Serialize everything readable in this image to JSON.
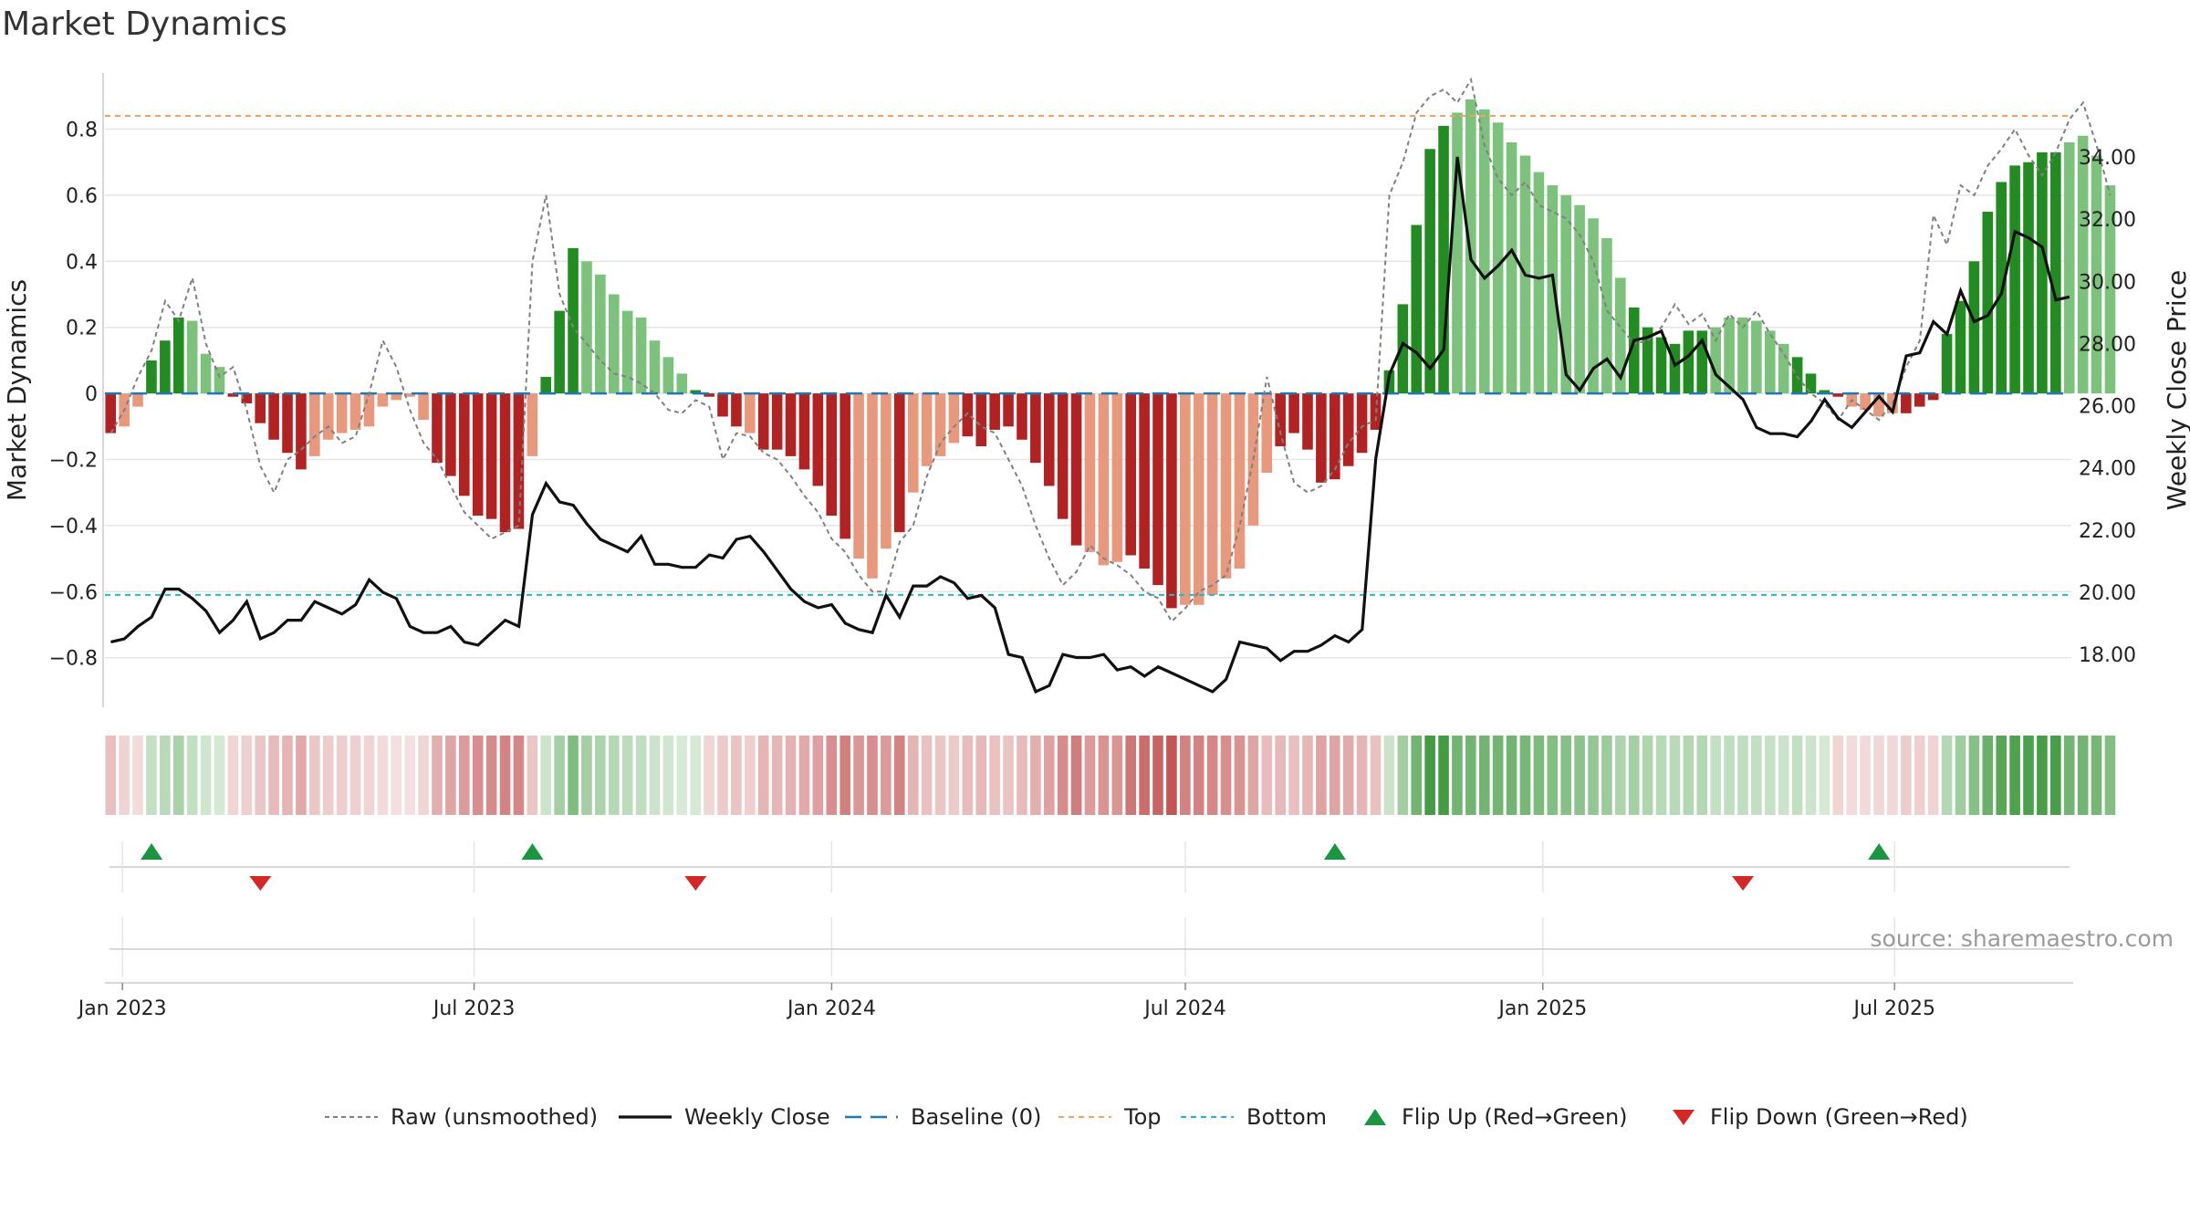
{
  "title": "Market Dynamics",
  "source": "source: sharemaestro.com",
  "chart_data": {
    "type": "bar",
    "title": "Market Dynamics",
    "ylabel_left": "Market Dynamics",
    "ylabel_right": "Weekly Close Price",
    "ylim_left": [
      -0.95,
      0.97
    ],
    "ylim_right": [
      16.3,
      36.7
    ],
    "yticks_left": [
      "0.8",
      "0.6",
      "0.4",
      "0.2",
      "0",
      "−0.2",
      "−0.4",
      "−0.6",
      "−0.8"
    ],
    "yticks_left_values": [
      0.8,
      0.6,
      0.4,
      0.2,
      0,
      -0.2,
      -0.4,
      -0.6,
      -0.8
    ],
    "yticks_right": [
      "34.00",
      "32.00",
      "30.00",
      "28.00",
      "26.00",
      "24.00",
      "22.00",
      "20.00",
      "18.00"
    ],
    "yticks_right_values": [
      34,
      32,
      30,
      28,
      26,
      24,
      22,
      20,
      18
    ],
    "top_level": 0.84,
    "bottom_level": -0.61,
    "baseline": 0,
    "x_start": "2022-12-23",
    "x_end": "2025-09-30",
    "xticks": [
      {
        "label": "Jan 2023",
        "date": "2023-01-01"
      },
      {
        "label": "Jul 2023",
        "date": "2023-07-01"
      },
      {
        "label": "Jan 2024",
        "date": "2024-01-01"
      },
      {
        "label": "Jul 2024",
        "date": "2024-07-01"
      },
      {
        "label": "Jan 2025",
        "date": "2025-01-01"
      },
      {
        "label": "Jul 2025",
        "date": "2025-07-01"
      }
    ],
    "week_start": "2022-12-26",
    "bar_values": [
      -0.12,
      -0.1,
      -0.04,
      0.1,
      0.16,
      0.23,
      0.22,
      0.12,
      0.08,
      -0.01,
      -0.03,
      -0.09,
      -0.14,
      -0.18,
      -0.23,
      -0.19,
      -0.14,
      -0.12,
      -0.11,
      -0.1,
      -0.04,
      -0.02,
      -0.01,
      -0.08,
      -0.21,
      -0.25,
      -0.31,
      -0.37,
      -0.38,
      -0.42,
      -0.41,
      -0.19,
      0.05,
      0.25,
      0.44,
      0.4,
      0.36,
      0.3,
      0.25,
      0.23,
      0.16,
      0.11,
      0.06,
      0.01,
      -0.01,
      -0.07,
      -0.1,
      -0.12,
      -0.17,
      -0.17,
      -0.19,
      -0.23,
      -0.28,
      -0.37,
      -0.44,
      -0.5,
      -0.56,
      -0.47,
      -0.42,
      -0.3,
      -0.22,
      -0.19,
      -0.15,
      -0.13,
      -0.16,
      -0.11,
      -0.1,
      -0.14,
      -0.21,
      -0.28,
      -0.38,
      -0.46,
      -0.48,
      -0.52,
      -0.51,
      -0.49,
      -0.53,
      -0.58,
      -0.65,
      -0.64,
      -0.64,
      -0.61,
      -0.56,
      -0.53,
      -0.4,
      -0.24,
      -0.16,
      -0.12,
      -0.17,
      -0.27,
      -0.26,
      -0.22,
      -0.18,
      -0.11,
      0.07,
      0.27,
      0.51,
      0.74,
      0.81,
      0.85,
      0.89,
      0.86,
      0.82,
      0.76,
      0.72,
      0.67,
      0.63,
      0.6,
      0.57,
      0.53,
      0.47,
      0.35,
      0.26,
      0.2,
      0.17,
      0.15,
      0.19,
      0.19,
      0.2,
      0.23,
      0.23,
      0.22,
      0.19,
      0.15,
      0.11,
      0.06,
      0.01,
      -0.01,
      -0.04,
      -0.05,
      -0.07,
      -0.06,
      -0.06,
      -0.04,
      -0.02,
      0.18,
      0.28,
      0.4,
      0.55,
      0.64,
      0.69,
      0.7,
      0.73,
      0.73,
      0.76,
      0.78,
      0.72,
      0.63
    ],
    "bar_flags": "DLLDDDLLLDDDDDDLLLLLLLLLDDDDDDDLDDDLLLLLLLLDDDDLDDDDDDDLLLDLLLLDDDDDDDDDLLLDDDDLLLLLLLDDDDDDDDDDDDDLLLLLLLLLLLLLDDDDDDLLLLLLDDDDLLLLDDDDDDDDDDDDLL",
    "raw_values": [
      -0.12,
      -0.05,
      0.05,
      0.13,
      0.28,
      0.22,
      0.35,
      0.15,
      0.05,
      0.08,
      -0.05,
      -0.22,
      -0.3,
      -0.2,
      -0.17,
      -0.13,
      -0.1,
      -0.15,
      -0.13,
      0.0,
      0.16,
      0.08,
      -0.05,
      -0.15,
      -0.2,
      -0.28,
      -0.36,
      -0.4,
      -0.44,
      -0.42,
      -0.4,
      0.4,
      0.6,
      0.3,
      0.2,
      0.15,
      0.1,
      0.06,
      0.05,
      0.03,
      0.0,
      -0.05,
      -0.06,
      -0.02,
      -0.04,
      -0.2,
      -0.12,
      -0.13,
      -0.18,
      -0.2,
      -0.25,
      -0.31,
      -0.36,
      -0.44,
      -0.48,
      -0.55,
      -0.6,
      -0.6,
      -0.45,
      -0.4,
      -0.25,
      -0.15,
      -0.1,
      -0.06,
      -0.1,
      -0.12,
      -0.2,
      -0.28,
      -0.4,
      -0.5,
      -0.58,
      -0.54,
      -0.46,
      -0.5,
      -0.52,
      -0.55,
      -0.6,
      -0.62,
      -0.69,
      -0.65,
      -0.6,
      -0.58,
      -0.55,
      -0.4,
      -0.2,
      0.05,
      -0.12,
      -0.27,
      -0.3,
      -0.28,
      -0.23,
      -0.15,
      -0.1,
      -0.08,
      0.6,
      0.7,
      0.85,
      0.9,
      0.92,
      0.88,
      0.95,
      0.75,
      0.65,
      0.6,
      0.64,
      0.57,
      0.55,
      0.53,
      0.48,
      0.4,
      0.25,
      0.2,
      0.15,
      0.16,
      0.2,
      0.27,
      0.21,
      0.24,
      0.16,
      0.24,
      0.2,
      0.25,
      0.18,
      0.12,
      0.05,
      0.0,
      -0.03,
      -0.08,
      -0.02,
      -0.05,
      -0.08,
      -0.03,
      0.08,
      0.16,
      0.54,
      0.45,
      0.63,
      0.6,
      0.69,
      0.74,
      0.8,
      0.72,
      0.66,
      0.73,
      0.83,
      0.88,
      0.75,
      0.6
    ],
    "close_values": [
      18.4,
      18.5,
      18.9,
      19.2,
      20.1,
      20.1,
      19.8,
      19.4,
      18.7,
      19.1,
      19.7,
      18.5,
      18.7,
      19.1,
      19.1,
      19.7,
      19.5,
      19.3,
      19.6,
      20.4,
      20.0,
      19.8,
      18.9,
      18.7,
      18.7,
      18.9,
      18.4,
      18.3,
      18.7,
      19.1,
      18.9,
      22.5,
      23.5,
      22.9,
      22.8,
      22.2,
      21.7,
      21.5,
      21.3,
      21.8,
      20.9,
      20.9,
      20.8,
      20.8,
      21.2,
      21.1,
      21.7,
      21.8,
      21.3,
      20.7,
      20.1,
      19.7,
      19.5,
      19.6,
      19.0,
      18.8,
      18.7,
      19.9,
      19.2,
      20.2,
      20.2,
      20.5,
      20.3,
      19.8,
      19.9,
      19.5,
      18.0,
      17.9,
      16.8,
      17.0,
      18.0,
      17.9,
      17.9,
      18.0,
      17.5,
      17.6,
      17.3,
      17.6,
      17.4,
      17.2,
      17.0,
      16.8,
      17.2,
      18.4,
      18.3,
      18.2,
      17.8,
      18.1,
      18.1,
      18.3,
      18.6,
      18.4,
      18.8,
      24.3,
      27.0,
      28.0,
      27.7,
      27.2,
      27.8,
      34.0,
      30.7,
      30.1,
      30.5,
      31.0,
      30.2,
      30.1,
      30.2,
      27.0,
      26.5,
      27.2,
      27.5,
      26.9,
      28.1,
      28.2,
      28.4,
      27.3,
      27.6,
      28.1,
      27.0,
      26.6,
      26.2,
      25.3,
      25.1,
      25.1,
      25.0,
      25.5,
      26.2,
      25.6,
      25.3,
      25.8,
      26.3,
      25.8,
      27.6,
      27.7,
      28.7,
      28.3,
      29.7,
      28.7,
      28.9,
      29.6,
      31.6,
      31.4,
      31.1,
      29.4,
      29.5
    ],
    "flip_up_dates": [
      "2023-01-16",
      "2023-07-31",
      "2024-09-16",
      "2025-06-23"
    ],
    "flip_down_dates": [
      "2023-03-13",
      "2023-10-23",
      "2025-04-14"
    ],
    "legend": [
      {
        "label": "Raw (unsmoothed)",
        "kind": "dotted-line"
      },
      {
        "label": "Weekly Close",
        "kind": "solid-line"
      },
      {
        "label": "Baseline (0)",
        "kind": "dashed-line"
      },
      {
        "label": "Top",
        "kind": "dashed-orange"
      },
      {
        "label": "Bottom",
        "kind": "dashed-cyan"
      },
      {
        "label": "Flip Up (Red→Green)",
        "kind": "up-triangle"
      },
      {
        "label": "Flip Down (Green→Red)",
        "kind": "down-triangle"
      }
    ],
    "legend_placement": "bottom",
    "grid": true
  },
  "colors": {
    "green_dark": "#228b22",
    "green_light": "#7cc17c",
    "red_dark": "#b22222",
    "red_light": "#e8987c",
    "top_line": "#f4a261",
    "bottom_line": "#17becf",
    "baseline": "#1f77b4",
    "raw_line": "#808080",
    "close_line": "#111111",
    "up_marker": "#1a9641",
    "down_marker": "#d62728",
    "grid": "#e5e5e5"
  }
}
